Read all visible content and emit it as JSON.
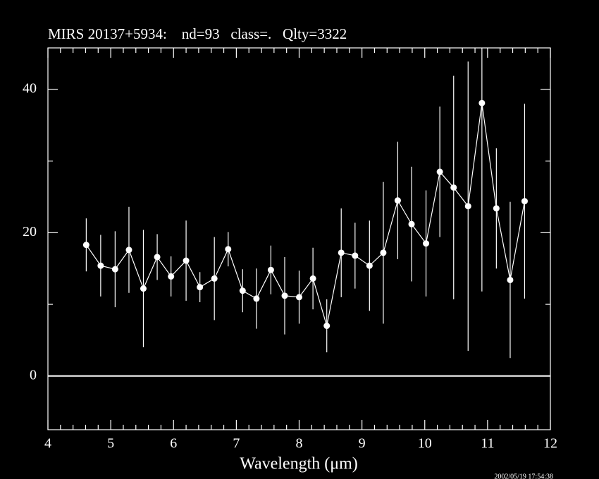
{
  "chart_data": {
    "type": "errorbar",
    "title": "MIRS 20137+5934:    nd=93   class=.   Qlty=3322",
    "x_label": "Wavelength (μm)",
    "footer": "2002/05/19 17:54:38",
    "series": [
      {
        "color": "#ffffff",
        "x": [
          4.61,
          4.84,
          5.07,
          5.29,
          5.52,
          5.74,
          5.96,
          6.2,
          6.42,
          6.65,
          6.87,
          7.1,
          7.32,
          7.55,
          7.77,
          8.0,
          8.22,
          8.44,
          8.67,
          8.89,
          9.12,
          9.34,
          9.57,
          9.79,
          10.02,
          10.24,
          10.46,
          10.69,
          10.91,
          11.14,
          11.36,
          11.59
        ],
        "values": [
          18.3,
          15.4,
          14.9,
          17.6,
          12.2,
          16.6,
          13.9,
          16.1,
          12.4,
          13.6,
          17.7,
          11.9,
          10.8,
          14.8,
          11.2,
          11.0,
          13.6,
          7.0,
          17.2,
          16.8,
          15.4,
          17.2,
          24.5,
          21.2,
          18.5,
          28.5,
          26.3,
          23.7,
          38.1,
          23.4,
          13.4,
          24.4
        ],
        "errors": [
          3.7,
          4.3,
          5.3,
          6.0,
          8.2,
          3.2,
          2.8,
          5.6,
          2.1,
          5.8,
          2.4,
          3.0,
          4.2,
          3.4,
          5.4,
          3.7,
          4.3,
          3.7,
          6.2,
          4.6,
          6.3,
          9.9,
          8.2,
          8.0,
          7.4,
          9.1,
          15.6,
          20.2,
          26.3,
          8.4,
          10.9,
          13.6
        ]
      }
    ],
    "xlim": [
      4,
      12
    ],
    "xticks": [
      4,
      5,
      6,
      7,
      8,
      9,
      10,
      11,
      12
    ],
    "xticks_minor": [
      4.2,
      4.4,
      4.6,
      4.8,
      5.2,
      5.4,
      5.6,
      5.8,
      6.2,
      6.4,
      6.6,
      6.8,
      7.2,
      7.4,
      7.6,
      7.8,
      8.2,
      8.4,
      8.6,
      8.8,
      9.2,
      9.4,
      9.6,
      9.8,
      10.2,
      10.4,
      10.6,
      10.8,
      11.2,
      11.4,
      11.6,
      11.8
    ],
    "ylim": [
      -7.5,
      45.8
    ],
    "yticks": [
      0,
      20,
      40
    ],
    "yticks_minor": [
      10,
      30
    ],
    "hline": 0
  }
}
